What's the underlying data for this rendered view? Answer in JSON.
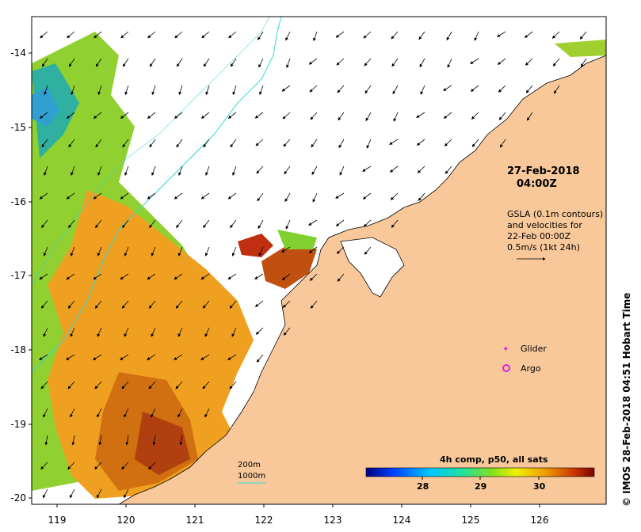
{
  "map": {
    "date_line1": "27-Feb-2018",
    "date_line2": "04:00Z",
    "gsla_lines": [
      "GSLA (0.1m contours)",
      "and velocities for",
      "22-Feb 00:00Z",
      "0.5m/s (1kt 24h)"
    ],
    "legend": {
      "glider": "Glider",
      "argo": "Argo",
      "glider_color": "#e020e0",
      "argo_color": "#e020e0"
    },
    "depth_legend": {
      "d200": "200m",
      "d1000": "1000m",
      "contour_color": "#30d8d8"
    },
    "colorbar": {
      "title": "4h comp, p50, all sats",
      "ticks": [
        "28",
        "29",
        "30"
      ]
    },
    "x_ticks": [
      "119",
      "120",
      "121",
      "122",
      "123",
      "124",
      "125",
      "126"
    ],
    "y_ticks": [
      "-14",
      "-15",
      "-16",
      "-17",
      "-18",
      "-19",
      "-20"
    ],
    "credit": "© IMOS 28-Feb-2018 04:51 Hobart Time",
    "colors": {
      "land": "#f8c89a",
      "ocean_nodata": "#ffffff",
      "sst_warm": "#c06010",
      "sst_cool": "#20a8c8"
    }
  }
}
